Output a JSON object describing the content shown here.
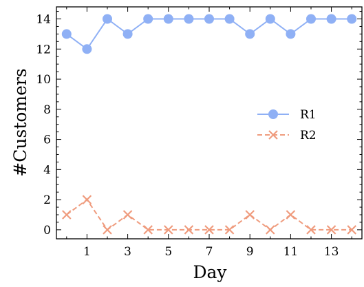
{
  "chart_data": {
    "type": "line",
    "xlabel": "Day",
    "ylabel": "#Customers",
    "x": [
      0,
      1,
      2,
      3,
      4,
      5,
      6,
      7,
      8,
      9,
      10,
      11,
      12,
      13,
      14
    ],
    "xlim": [
      -0.5,
      14.5
    ],
    "ylim": [
      -0.6,
      14.8
    ],
    "xticks_major": [
      1,
      3,
      5,
      7,
      9,
      11,
      13
    ],
    "xticks_minor": [
      0,
      2,
      4,
      6,
      8,
      10,
      12,
      14
    ],
    "yticks_major": [
      0,
      2,
      4,
      6,
      8,
      10,
      12,
      14
    ],
    "grid": false,
    "legend_position": "center-right",
    "series": [
      {
        "name": "R1",
        "values": [
          13,
          12,
          14,
          13,
          14,
          14,
          14,
          14,
          14,
          13,
          14,
          13,
          14,
          14,
          14
        ],
        "color": "#8fb0f5",
        "marker": "circle",
        "linestyle": "solid"
      },
      {
        "name": "R2",
        "values": [
          1,
          2,
          0,
          1,
          0,
          0,
          0,
          0,
          0,
          1,
          0,
          1,
          0,
          0,
          0
        ],
        "color": "#ef9b7d",
        "marker": "x",
        "linestyle": "dashed"
      }
    ]
  }
}
